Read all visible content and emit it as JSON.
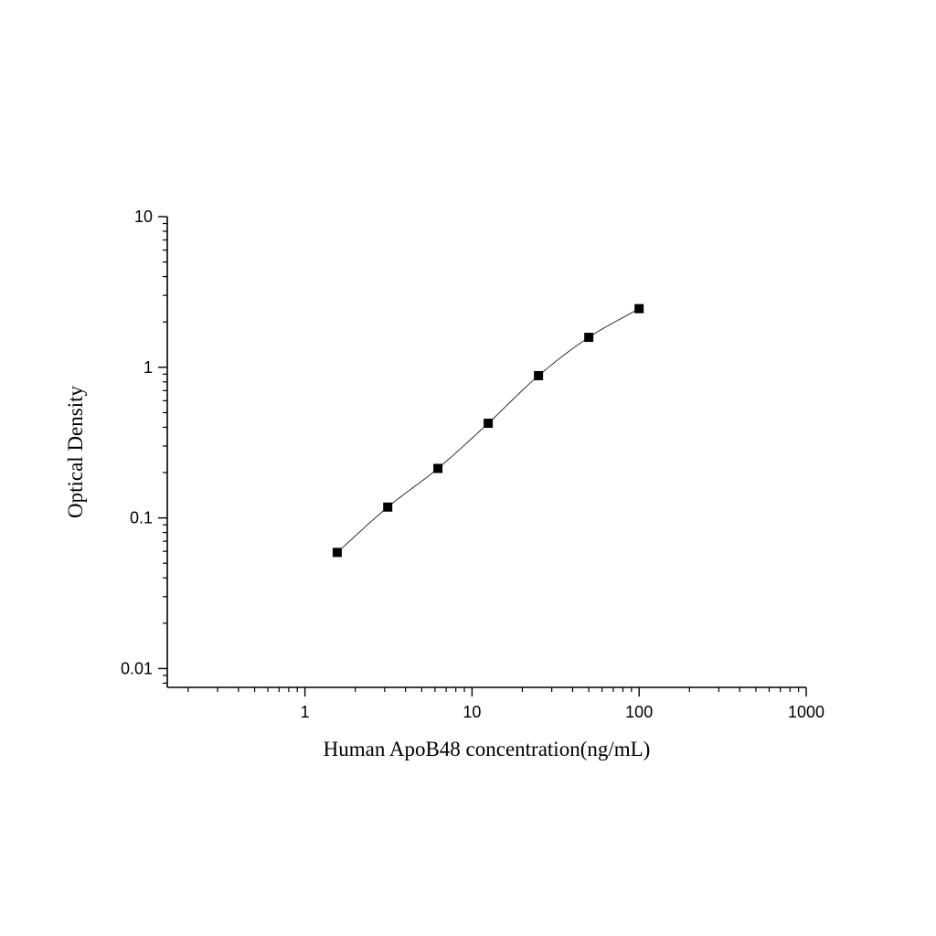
{
  "chart_data": {
    "type": "scatter",
    "title": "",
    "xlabel": "Human ApoB48 concentration(ng/mL)",
    "ylabel": "Optical Density",
    "xscale": "log",
    "yscale": "log",
    "xlim": [
      0.15,
      1000
    ],
    "ylim": [
      0.0075,
      10
    ],
    "x_ticks": [
      1,
      10,
      100,
      1000
    ],
    "x_tick_labels": [
      "1",
      "10",
      "100",
      "1000"
    ],
    "y_ticks": [
      0.01,
      0.1,
      1,
      10
    ],
    "y_tick_labels": [
      "0.01",
      "0.1",
      "1",
      "10"
    ],
    "grid": false,
    "legend": "none",
    "series": [
      {
        "x": [
          1.56,
          3.13,
          6.25,
          12.5,
          25,
          50,
          100
        ],
        "y": [
          0.059,
          0.118,
          0.213,
          0.425,
          0.88,
          1.58,
          2.45
        ],
        "marker": "square",
        "color": "#000000"
      }
    ],
    "fit_curve": {
      "type": "4PL",
      "color": "#000000"
    }
  }
}
